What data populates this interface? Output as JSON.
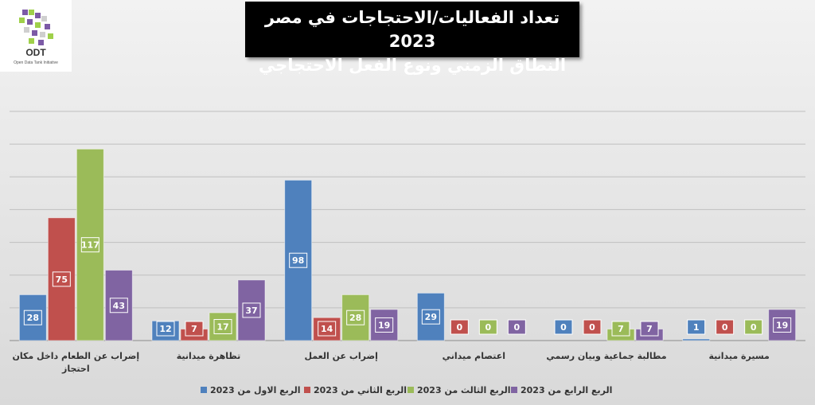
{
  "logo": {
    "name": "ODT",
    "tagline": "Open Data Tank Initiative"
  },
  "chart_data": {
    "type": "bar",
    "title": "تعداد الفعاليات/الاحتجاجات في مصر 2023",
    "subtitle": "النطاق الزمني ونوع الفعل الاحتجاجي",
    "categories": [
      "إضراب عن الطعام داخل مكان احتجاز",
      "تظاهرة ميدانية",
      "إضراب عن العمل",
      "اعتصام ميداني",
      "مطالبة جماعية وبيان رسمي",
      "مسيرة ميدانية"
    ],
    "series": [
      {
        "name": "الربع الاول من 2023",
        "color": "#4f81bd",
        "values": [
          28,
          12,
          98,
          29,
          0,
          1
        ]
      },
      {
        "name": "الربع الثاني من 2023",
        "color": "#c0504d",
        "values": [
          75,
          7,
          14,
          0,
          0,
          0
        ]
      },
      {
        "name": "الربع الثالث من 2023",
        "color": "#9bbb59",
        "values": [
          117,
          17,
          28,
          0,
          7,
          0
        ]
      },
      {
        "name": "الربع الرابع من 2023",
        "color": "#8064a2",
        "values": [
          43,
          37,
          19,
          0,
          7,
          19
        ]
      }
    ],
    "ylim": [
      0,
      140
    ],
    "grid": true,
    "legend_position": "bottom",
    "data_labels": true
  }
}
